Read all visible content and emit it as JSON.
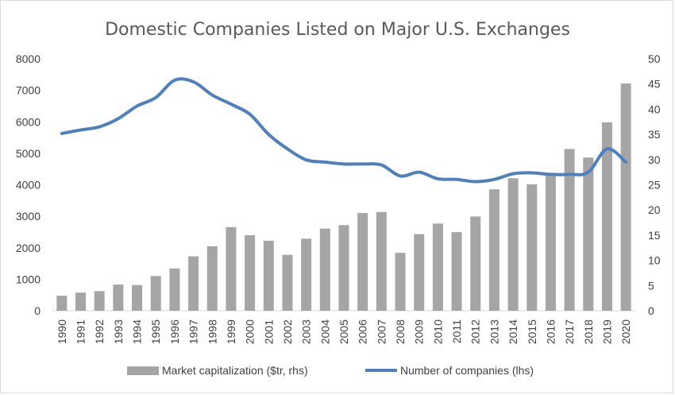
{
  "chart_data": {
    "type": "bar+line",
    "title": "Domestic Companies Listed on Major U.S. Exchanges",
    "categories": [
      "1990",
      "1991",
      "1992",
      "1993",
      "1994",
      "1995",
      "1996",
      "1997",
      "1998",
      "1999",
      "2000",
      "2001",
      "2002",
      "2003",
      "2004",
      "2005",
      "2006",
      "2007",
      "2008",
      "2009",
      "2010",
      "2011",
      "2012",
      "2013",
      "2014",
      "2015",
      "2016",
      "2017",
      "2018",
      "2019",
      "2020"
    ],
    "left_axis": {
      "ylim": [
        0,
        8000
      ],
      "ticks": [
        "0",
        "1000",
        "2000",
        "3000",
        "4000",
        "5000",
        "6000",
        "7000",
        "8000"
      ]
    },
    "right_axis": {
      "ylim": [
        0,
        50
      ],
      "ticks": [
        "0",
        "5",
        "10",
        "15",
        "20",
        "25",
        "30",
        "35",
        "40",
        "45",
        "50"
      ]
    },
    "series": [
      {
        "name": "Market capitalization ($tr, rhs)",
        "type": "bar",
        "axis": "right",
        "color": "#a5a5a5",
        "values": [
          3.0,
          3.6,
          3.9,
          5.2,
          5.1,
          6.9,
          8.4,
          10.8,
          12.8,
          16.6,
          15.0,
          13.9,
          11.1,
          14.3,
          16.3,
          17.0,
          19.4,
          19.6,
          11.5,
          15.2,
          17.3,
          15.6,
          18.7,
          24.1,
          26.3,
          25.1,
          27.0,
          32.1,
          30.4,
          37.4,
          45.1
        ]
      },
      {
        "name": "Number of companies (lhs)",
        "type": "line",
        "axis": "left",
        "color": "#4f7fbd",
        "values": [
          5630,
          5740,
          5840,
          6100,
          6500,
          6770,
          7320,
          7270,
          6850,
          6560,
          6240,
          5600,
          5140,
          4790,
          4720,
          4660,
          4660,
          4630,
          4280,
          4400,
          4190,
          4170,
          4100,
          4170,
          4350,
          4380,
          4330,
          4330,
          4400,
          5140,
          4720
        ]
      }
    ],
    "legend": "bottom",
    "grid": false
  }
}
